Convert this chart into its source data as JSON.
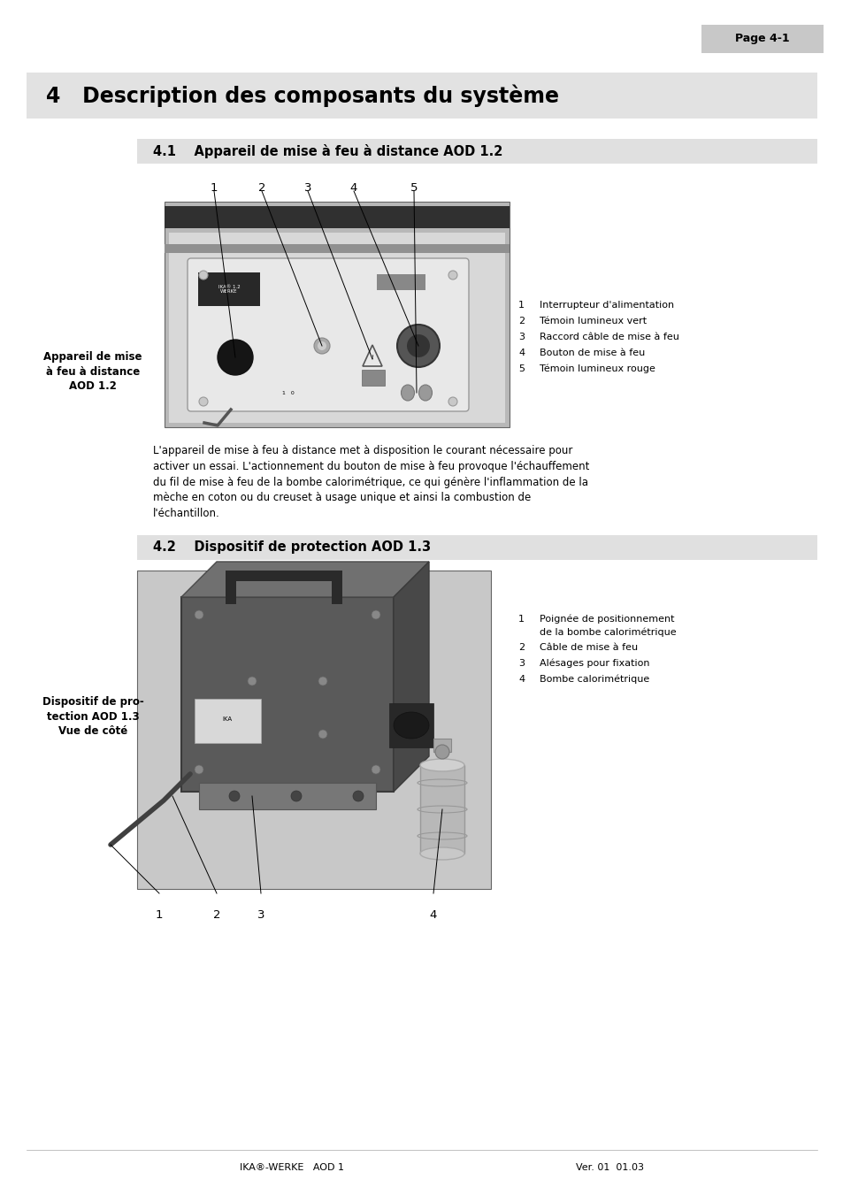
{
  "page_label": "Page 4-1",
  "chapter_title": "4   Description des composants du système",
  "section1_title": "4.1    Appareil de mise à feu à distance AOD 1.2",
  "section2_title": "4.2    Dispositif de protection AOD 1.3",
  "section1_caption": "Appareil de mise\nà feu à distance\nAOD 1.2",
  "section2_caption": "Dispositif de pro-\ntection AOD 1.3\nVue de côté",
  "section1_labels": [
    "1",
    "2",
    "3",
    "4",
    "5"
  ],
  "section2_labels": [
    "1",
    "2",
    "3",
    "4"
  ],
  "section1_items_num": [
    "1",
    "2",
    "3",
    "4",
    "5"
  ],
  "section1_items_text": [
    "Interrupteur d'alimentation",
    "Témoin lumineux vert",
    "Raccord câble de mise à feu",
    "Bouton de mise à feu",
    "Témoin lumineux rouge"
  ],
  "section2_items_num": [
    "1",
    "2",
    "3",
    "4"
  ],
  "section2_items_text": [
    "Poignée de positionnement\nde la bombe calorimétrique",
    "Câble de mise à feu",
    "Alésages pour fixation",
    "Bombe calorimétrique"
  ],
  "para_lines": [
    "L'appareil de mise à feu à distance met à disposition le courant nécessaire pour",
    "activer un essai. L'actionnement du bouton de mise à feu provoque l'échauffement",
    "du fil de mise à feu de la bombe calorimétrique, ce qui génère l'inflammation de la",
    "mèche en coton ou du creuset à usage unique et ainsi la combustion de",
    "l'échantillon."
  ],
  "footer_left": "IKA®-WERKE   AOD 1",
  "footer_right": "Ver. 01  01.03",
  "bg_color": "#ffffff",
  "header_bg": "#c8c8c8",
  "section_header_bg": "#e0e0e0",
  "chapter_bg": "#e2e2e2"
}
